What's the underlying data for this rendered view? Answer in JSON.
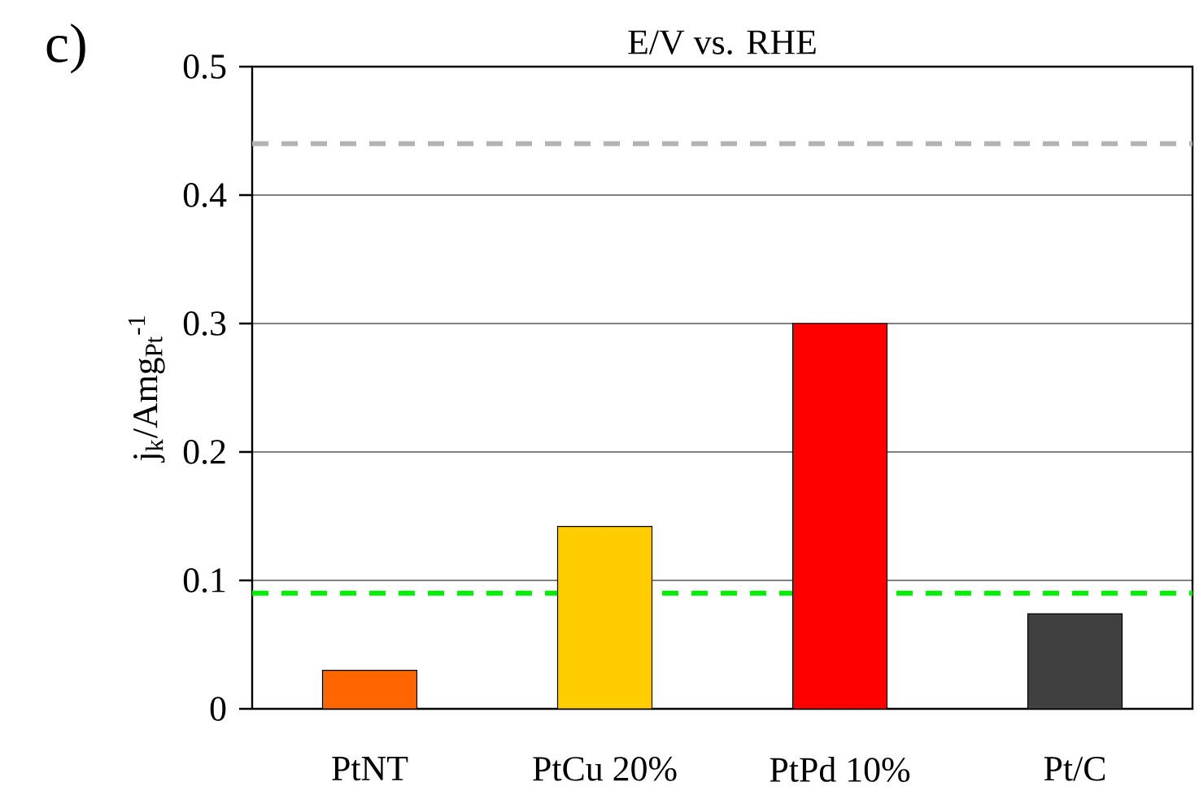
{
  "chart_data": {
    "type": "bar",
    "title": "E/V vs. RHE",
    "ylabel": "j$_{k}$/Amg$_{Pt}$$^{-1}$",
    "categories": [
      "PtNT",
      "PtCu 20%",
      "PtPd 10%",
      "Pt/C"
    ],
    "values": [
      0.03,
      0.142,
      0.3,
      0.074
    ],
    "colors": [
      "#ff6600",
      "#ffcc00",
      "#ff0000",
      "#404040"
    ],
    "ylim": [
      0,
      0.5
    ],
    "yticks": [
      0,
      0.1,
      0.2,
      0.3,
      0.4,
      0.5
    ],
    "grid": "y",
    "ref_lines": [
      {
        "axis": "y",
        "value": 0.44,
        "color": "#b3b3b3",
        "line_style": "dashed"
      },
      {
        "axis": "y",
        "value": 0.09,
        "color": "#00ee00",
        "line_style": "dashed"
      }
    ],
    "annotations": [
      "c)"
    ]
  }
}
